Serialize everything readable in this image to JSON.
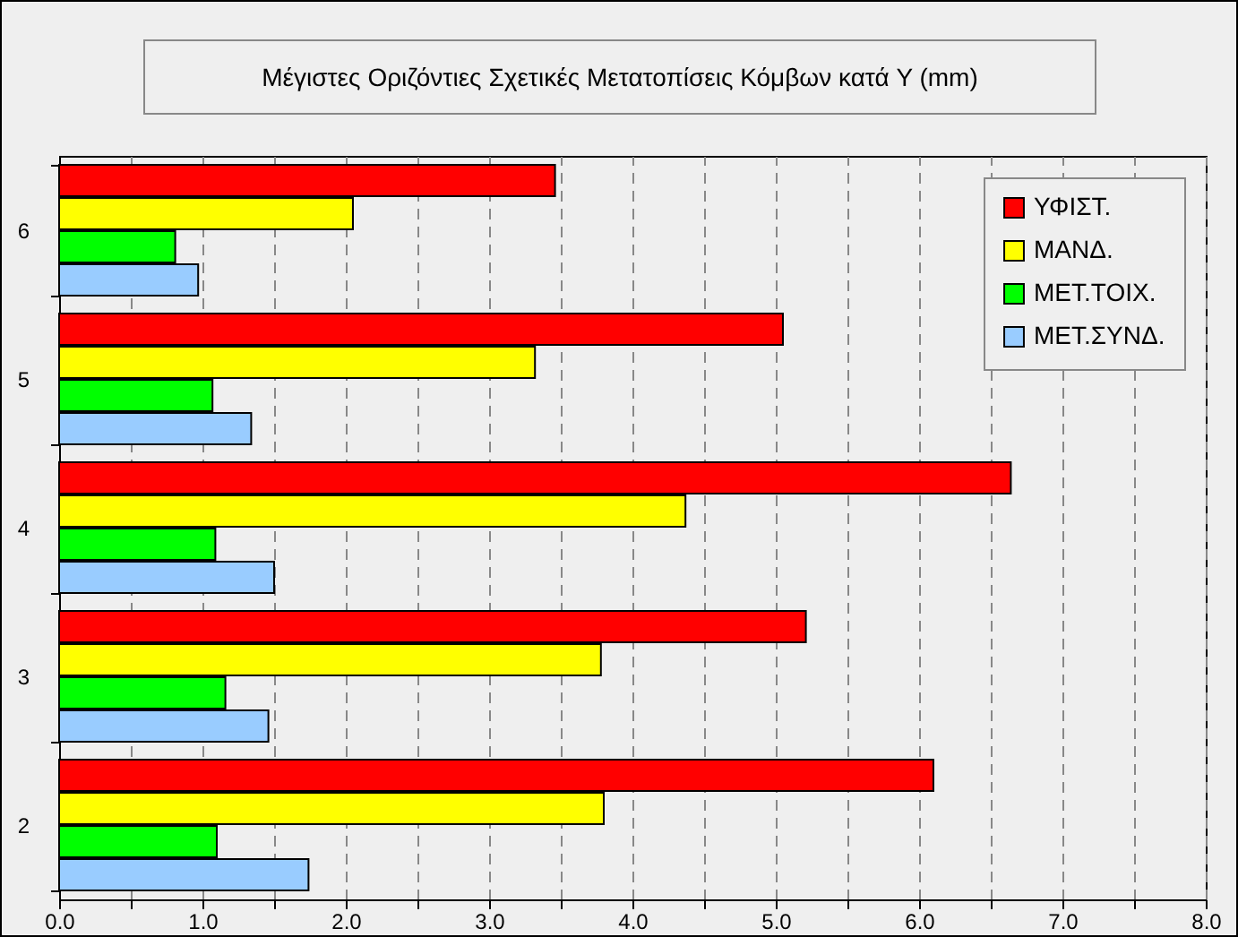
{
  "chart_data": {
    "type": "bar",
    "orientation": "horizontal",
    "title": "Μέγιστες Οριζόντιες Σχετικές Μετατοπίσεις Κόμβων κατά Y (mm)",
    "categories": [
      "6",
      "5",
      "4",
      "3",
      "2"
    ],
    "series": [
      {
        "name": "ΥΦΙΣΤ.",
        "color": "#ff0000",
        "values": [
          3.46,
          5.05,
          6.64,
          5.21,
          6.1
        ]
      },
      {
        "name": "ΜΑΝΔ.",
        "color": "#ffff00",
        "values": [
          2.05,
          3.32,
          4.37,
          3.78,
          3.8
        ]
      },
      {
        "name": "ΜΕΤ.ΤΟΙΧ.",
        "color": "#00ff00",
        "values": [
          0.81,
          1.07,
          1.09,
          1.16,
          1.1
        ]
      },
      {
        "name": "ΜΕΤ.ΣΥΝΔ.",
        "color": "#99ccff",
        "values": [
          0.97,
          1.34,
          1.5,
          1.46,
          1.74
        ]
      }
    ],
    "xlim": [
      0,
      8
    ],
    "xticks": [
      {
        "value": 0,
        "label": "0.0"
      },
      {
        "value": 0.5,
        "label": null
      },
      {
        "value": 1,
        "label": "1.0"
      },
      {
        "value": 1.5,
        "label": null
      },
      {
        "value": 2,
        "label": "2.0"
      },
      {
        "value": 2.5,
        "label": null
      },
      {
        "value": 3,
        "label": "3.0"
      },
      {
        "value": 3.5,
        "label": null
      },
      {
        "value": 4,
        "label": "4.0"
      },
      {
        "value": 4.5,
        "label": null
      },
      {
        "value": 5,
        "label": "5.0"
      },
      {
        "value": 5.5,
        "label": null
      },
      {
        "value": 6,
        "label": "6.0"
      },
      {
        "value": 6.5,
        "label": null
      },
      {
        "value": 7,
        "label": "7.0"
      },
      {
        "value": 7.5,
        "label": null
      },
      {
        "value": 8,
        "label": "8.0"
      }
    ],
    "grid": "x",
    "legend": "top right"
  }
}
